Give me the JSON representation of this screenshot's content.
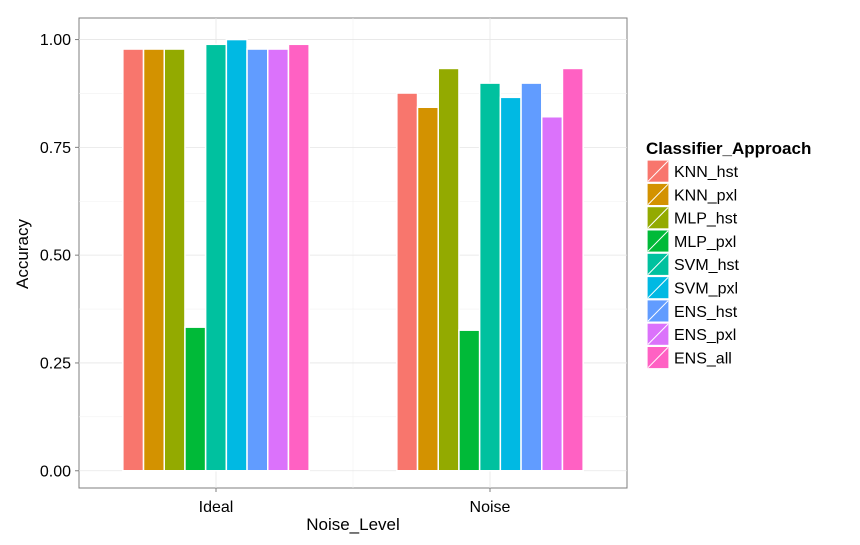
{
  "chart_data": {
    "type": "bar",
    "xlabel": "Noise_Level",
    "ylabel": "Accuracy",
    "categories": [
      "Ideal",
      "Noise"
    ],
    "ylim": [
      -0.04,
      1.05
    ],
    "yticks": [
      "0.00",
      "0.25",
      "0.50",
      "0.75",
      "1.00"
    ],
    "ytick_values": [
      0,
      0.25,
      0.5,
      0.75,
      1.0
    ],
    "grid": true,
    "legend": {
      "title": "Classifier_Approach",
      "position": "right"
    },
    "series": [
      {
        "name": "KNN_hst",
        "color": "#F8766D",
        "values": [
          0.978,
          0.876
        ]
      },
      {
        "name": "KNN_pxl",
        "color": "#D39200",
        "values": [
          0.978,
          0.843
        ]
      },
      {
        "name": "MLP_hst",
        "color": "#93AA00",
        "values": [
          0.978,
          0.933
        ]
      },
      {
        "name": "MLP_pxl",
        "color": "#00BA38",
        "values": [
          0.333,
          0.326
        ]
      },
      {
        "name": "SVM_hst",
        "color": "#00C19F",
        "values": [
          0.989,
          0.899
        ]
      },
      {
        "name": "SVM_pxl",
        "color": "#00B9E3",
        "values": [
          1.0,
          0.866
        ]
      },
      {
        "name": "ENS_hst",
        "color": "#619CFF",
        "values": [
          0.978,
          0.899
        ]
      },
      {
        "name": "ENS_pxl",
        "color": "#DB72FB",
        "values": [
          0.978,
          0.821
        ]
      },
      {
        "name": "ENS_all",
        "color": "#FF61C3",
        "values": [
          0.989,
          0.933
        ]
      }
    ]
  }
}
